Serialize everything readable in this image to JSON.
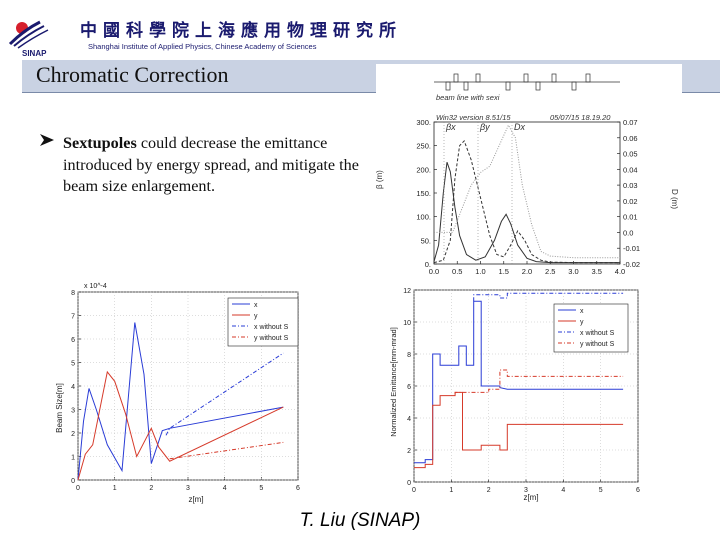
{
  "header": {
    "institute_cn": "中國科學院上海應用物理研究所",
    "institute_en": "Shanghai Institute of Applied Physics, Chinese Academy of Sciences",
    "logo_text": "SINAP"
  },
  "slide": {
    "title": "Chromatic Correction",
    "bullet_bold": "Sextupoles",
    "bullet_rest": " could decrease the emittance  introduced by energy spread, and mitigate the beam size enlargement.",
    "author": "T. Liu (SINAP)"
  },
  "colors": {
    "blue": "#2a3cd6",
    "red": "#d63a2a",
    "title_bar": "#c9d2e3",
    "navy": "#1a1a6e"
  },
  "chart_data": [
    {
      "type": "line",
      "title": "",
      "header_labels": [
        "beam line with sexi",
        "Win32 version 8.51/15",
        "05/07/15  18.19.20"
      ],
      "xlabel": "",
      "ylabel": "β (m)",
      "y2label": "D (m)",
      "xlim": [
        0.0,
        4.0
      ],
      "ylim": [
        0,
        300
      ],
      "y2lim": [
        -0.02,
        0.07
      ],
      "x_ticks": [
        "0.0",
        "0.5",
        "1.0",
        "1.5",
        "2.0",
        "2.5",
        "3.0",
        "3.5",
        "4.0"
      ],
      "y_ticks": [
        "0.",
        "50.",
        "100.",
        "150.",
        "200.",
        "250.",
        "300."
      ],
      "y2_ticks": [
        "-0.02",
        "-0.01",
        "0.0",
        "0.01",
        "0.02",
        "0.03",
        "0.04",
        "0.05",
        "0.06",
        "0.07"
      ],
      "legend": [
        "βx",
        "βy",
        "Dx"
      ],
      "series": [
        {
          "name": "βx",
          "x": [
            0,
            0.1,
            0.2,
            0.28,
            0.35,
            0.45,
            0.55,
            0.7,
            0.9,
            1.1,
            1.3,
            1.45,
            1.55,
            1.65,
            1.8,
            2.0,
            2.2,
            2.5,
            3.0,
            3.5,
            4.0
          ],
          "values": [
            5,
            40,
            150,
            215,
            195,
            120,
            60,
            20,
            8,
            15,
            50,
            90,
            105,
            85,
            40,
            12,
            5,
            3,
            3,
            3,
            3
          ]
        },
        {
          "name": "βy",
          "x": [
            0,
            0.2,
            0.35,
            0.45,
            0.55,
            0.65,
            0.8,
            1.0,
            1.2,
            1.35,
            1.5,
            1.65,
            1.8,
            1.95,
            2.1,
            2.3,
            2.5,
            3.0,
            3.5,
            4.0
          ],
          "values": [
            3,
            8,
            50,
            180,
            250,
            260,
            220,
            140,
            60,
            20,
            15,
            40,
            70,
            50,
            20,
            8,
            4,
            3,
            3,
            3
          ]
        },
        {
          "name": "Dx",
          "x": [
            0,
            0.4,
            0.6,
            0.8,
            1.0,
            1.2,
            1.4,
            1.6,
            1.75,
            1.9,
            2.1,
            2.3,
            2.5,
            3.0,
            3.5,
            4.0
          ],
          "values": [
            0.0,
            0.0,
            0.015,
            0.03,
            0.038,
            0.042,
            0.055,
            0.068,
            0.06,
            0.03,
            0.005,
            -0.012,
            -0.015,
            -0.016,
            -0.016,
            -0.016
          ]
        }
      ]
    },
    {
      "type": "line",
      "title": "",
      "xlabel": "z[m]",
      "ylabel": "Beam Size[m]",
      "exponent": "x 10^-4",
      "xlim": [
        0,
        6
      ],
      "ylim": [
        0,
        8
      ],
      "x_ticks": [
        "0",
        "1",
        "2",
        "3",
        "4",
        "5",
        "6"
      ],
      "y_ticks": [
        "0",
        "1",
        "2",
        "3",
        "4",
        "5",
        "6",
        "7",
        "8"
      ],
      "legend": [
        "x",
        "y",
        "x without S",
        "y without S"
      ],
      "legend_position": "top-right",
      "series": [
        {
          "name": "x",
          "x": [
            0,
            0.15,
            0.3,
            0.5,
            0.8,
            1.2,
            1.55,
            1.8,
            2.0,
            2.3,
            2.5,
            5.6
          ],
          "values": [
            0,
            2.5,
            3.9,
            3.0,
            1.5,
            0.4,
            6.7,
            4.5,
            0.7,
            2.1,
            2.2,
            3.1
          ]
        },
        {
          "name": "y",
          "x": [
            0,
            0.2,
            0.4,
            0.8,
            1.0,
            1.3,
            1.6,
            2.0,
            2.2,
            2.5,
            5.6
          ],
          "values": [
            0,
            1.1,
            1.5,
            4.6,
            4.2,
            2.8,
            1.0,
            2.2,
            1.4,
            0.8,
            3.1
          ]
        },
        {
          "name": "x without S",
          "x": [
            2.4,
            2.5,
            5.6
          ],
          "values": [
            1.9,
            2.2,
            5.4
          ]
        },
        {
          "name": "y without S",
          "x": [
            2.5,
            5.6
          ],
          "values": [
            0.9,
            1.6
          ]
        }
      ]
    },
    {
      "type": "line",
      "title": "",
      "xlabel": "z[m]",
      "ylabel": "Normalized Emittance[mm-mrad]",
      "xlim": [
        0,
        6
      ],
      "ylim": [
        0,
        12
      ],
      "x_ticks": [
        "0",
        "1",
        "2",
        "3",
        "4",
        "5",
        "6"
      ],
      "y_ticks": [
        "0",
        "2",
        "4",
        "6",
        "8",
        "10",
        "12"
      ],
      "legend": [
        "x",
        "y",
        "x without S",
        "y without S"
      ],
      "legend_position": "top-right",
      "series": [
        {
          "name": "x",
          "x": [
            0,
            0.3,
            0.3,
            0.5,
            0.5,
            0.7,
            0.7,
            1.2,
            1.2,
            1.4,
            1.4,
            1.6,
            1.6,
            1.8,
            1.8,
            2.3,
            2.3,
            2.5,
            5.6
          ],
          "values": [
            1.2,
            1.2,
            1.4,
            1.4,
            8,
            8,
            7.3,
            7.3,
            8.5,
            8.5,
            7.3,
            7.3,
            11.3,
            11.3,
            6.0,
            6.0,
            5.9,
            5.8,
            5.8
          ]
        },
        {
          "name": "y",
          "x": [
            0,
            0.3,
            0.3,
            0.5,
            0.5,
            0.7,
            0.7,
            1.1,
            1.1,
            1.3,
            1.3,
            1.8,
            1.8,
            2.3,
            2.3,
            2.5,
            2.5,
            5.6
          ],
          "values": [
            0.9,
            0.9,
            1.1,
            1.1,
            4.8,
            4.8,
            5.4,
            5.4,
            5.6,
            5.6,
            2.0,
            2.0,
            2.3,
            2.3,
            2.0,
            2.0,
            3.6,
            3.6
          ]
        },
        {
          "name": "x without S",
          "x": [
            1.6,
            1.6,
            2.3,
            2.3,
            2.5,
            2.5,
            5.6
          ],
          "values": [
            11.3,
            11.7,
            11.7,
            11.5,
            11.5,
            11.8,
            11.8
          ]
        },
        {
          "name": "y without S",
          "x": [
            1.1,
            1.1,
            2.0,
            2.0,
            2.3,
            2.3,
            2.5,
            2.5,
            5.6
          ],
          "values": [
            5.5,
            5.6,
            5.6,
            5.8,
            5.8,
            7.0,
            7.0,
            6.6,
            6.6
          ]
        }
      ]
    }
  ]
}
